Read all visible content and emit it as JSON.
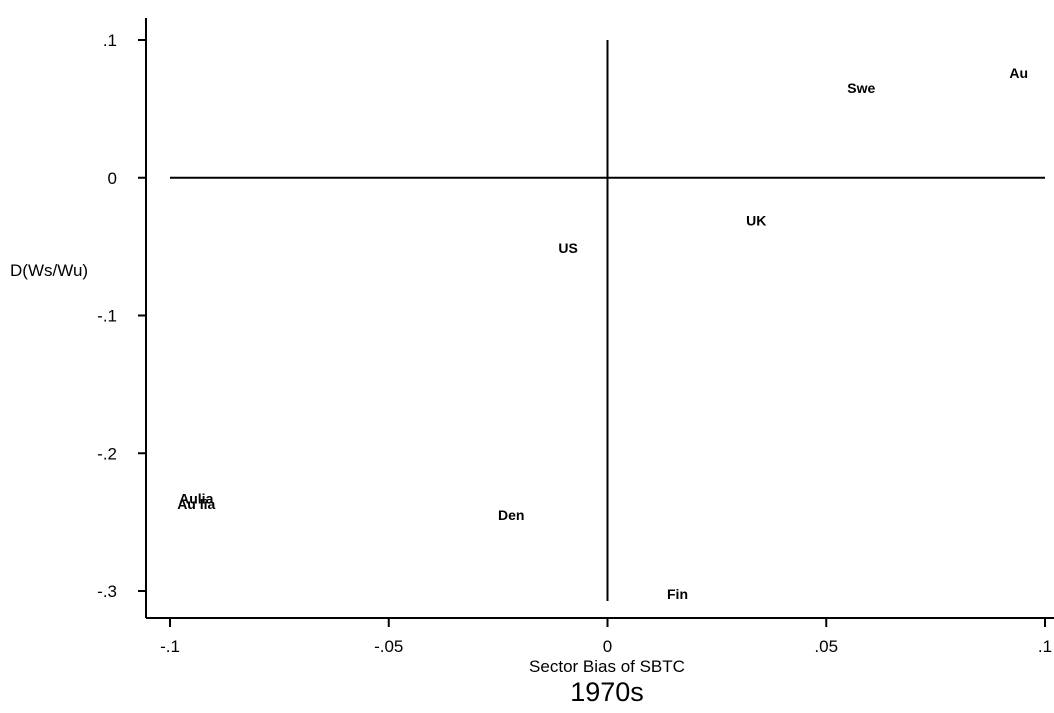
{
  "chart_data": {
    "type": "scatter",
    "xlabel": "Sector Bias of SBTC",
    "ylabel": "D(Ws/Wu)",
    "caption": "1970s",
    "xlim": [
      -0.1,
      0.1
    ],
    "ylim": [
      -0.3,
      0.1
    ],
    "x_ticks": [
      -0.1,
      -0.05,
      0,
      0.05,
      0.1
    ],
    "x_tick_labels": [
      "-.1",
      "-.05",
      "0",
      ".05",
      ".1"
    ],
    "y_ticks": [
      0.1,
      0,
      -0.1,
      -0.2,
      -0.3
    ],
    "y_tick_labels": [
      ".1",
      "0",
      "-.1",
      "-.2",
      "-.3"
    ],
    "reference_lines": {
      "x": 0,
      "y": 0
    },
    "points": [
      {
        "label": "Au",
        "x": 0.094,
        "y": 0.076
      },
      {
        "label": "Swe",
        "x": 0.058,
        "y": 0.065
      },
      {
        "label": "UK",
        "x": 0.034,
        "y": -0.031
      },
      {
        "label": "US",
        "x": -0.009,
        "y": -0.051
      },
      {
        "label": "Aulia",
        "x": -0.094,
        "y": -0.233
      },
      {
        "label": "Au lia",
        "x": -0.094,
        "y": -0.237
      },
      {
        "label": "Den",
        "x": -0.022,
        "y": -0.245
      },
      {
        "label": "Fin",
        "x": 0.016,
        "y": -0.302
      }
    ]
  }
}
